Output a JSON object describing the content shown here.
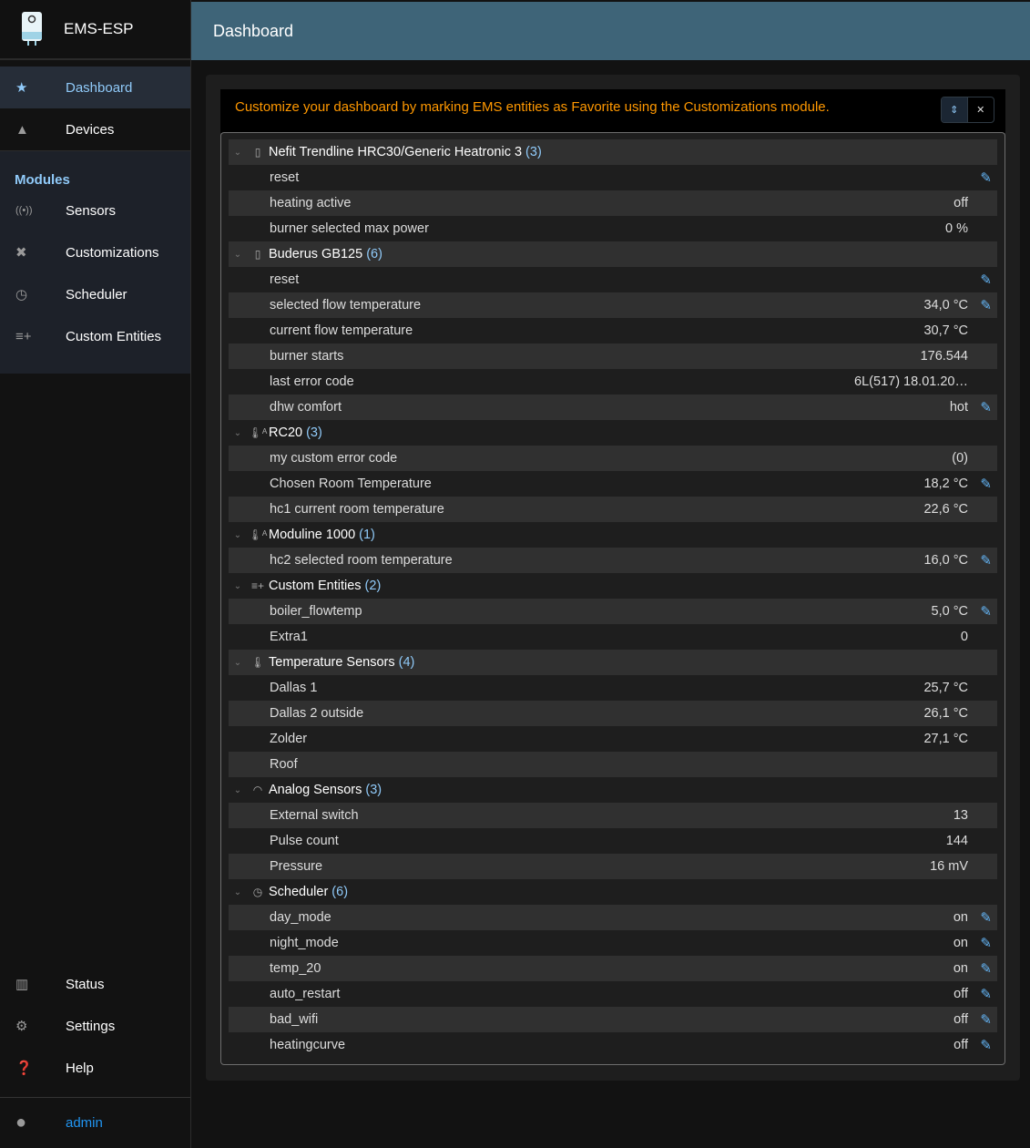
{
  "app": {
    "title": "EMS-ESP",
    "page_title": "Dashboard"
  },
  "sidebar": {
    "top": [
      {
        "label": "Dashboard",
        "icon": "star-icon",
        "selected": true
      },
      {
        "label": "Devices",
        "icon": "category-icon"
      }
    ],
    "modules_label": "Modules",
    "modules": [
      {
        "label": "Sensors",
        "icon": "sensors-icon"
      },
      {
        "label": "Customizations",
        "icon": "tools-icon"
      },
      {
        "label": "Scheduler",
        "icon": "clock-plus-icon"
      },
      {
        "label": "Custom Entities",
        "icon": "playlist-add-icon"
      }
    ],
    "bottom": [
      {
        "label": "Status",
        "icon": "chart-icon"
      },
      {
        "label": "Settings",
        "icon": "gear-icon"
      },
      {
        "label": "Help",
        "icon": "help-icon"
      }
    ],
    "user": {
      "label": "admin",
      "icon": "account-icon"
    }
  },
  "message": "Customize your dashboard by marking EMS entities as Favorite using the Customizations module.",
  "colors": {
    "accent": "#90caf9",
    "warning": "#ff9800",
    "header": "#3e6478"
  },
  "groups": [
    {
      "name": "Nefit Trendline HRC30/Generic Heatronic 3",
      "count": "(3)",
      "icon": "boiler-icon",
      "items": [
        {
          "name": "reset",
          "value": "",
          "edit": true
        },
        {
          "name": "heating active",
          "value": "off"
        },
        {
          "name": "burner selected max power",
          "value": "0 %"
        }
      ]
    },
    {
      "name": "Buderus GB125",
      "count": "(6)",
      "icon": "boiler-icon",
      "items": [
        {
          "name": "reset",
          "value": "",
          "edit": true
        },
        {
          "name": "selected flow temperature",
          "value": "34,0 °C",
          "edit": true
        },
        {
          "name": "current flow temperature",
          "value": "30,7 °C"
        },
        {
          "name": "burner starts",
          "value": "176.544"
        },
        {
          "name": "last error code",
          "value": "6L(517) 18.01.20…"
        },
        {
          "name": "dhw comfort",
          "value": "hot",
          "edit": true
        }
      ]
    },
    {
      "name": "RC20",
      "count": "(3)",
      "icon": "thermostat-icon",
      "items": [
        {
          "name": "my custom error code",
          "value": "(0)"
        },
        {
          "name": "Chosen Room Temperature",
          "value": "18,2 °C",
          "edit": true
        },
        {
          "name": "hc1 current room temperature",
          "value": "22,6 °C"
        }
      ]
    },
    {
      "name": "Moduline 1000",
      "count": "(1)",
      "icon": "thermostat-icon",
      "items": [
        {
          "name": "hc2 selected room temperature",
          "value": "16,0 °C",
          "edit": true
        }
      ]
    },
    {
      "name": "Custom Entities",
      "count": "(2)",
      "icon": "playlist-add-icon",
      "items": [
        {
          "name": "boiler_flowtemp",
          "value": "5,0 °C",
          "edit": true
        },
        {
          "name": "Extra1",
          "value": "0"
        }
      ]
    },
    {
      "name": "Temperature Sensors",
      "count": "(4)",
      "icon": "thermometer-icon",
      "items": [
        {
          "name": "Dallas 1",
          "value": "25,7 °C"
        },
        {
          "name": "Dallas 2 outside",
          "value": "26,1 °C"
        },
        {
          "name": "Zolder",
          "value": "27,1 °C"
        },
        {
          "name": "Roof",
          "value": ""
        }
      ]
    },
    {
      "name": "Analog Sensors",
      "count": "(3)",
      "icon": "gauge-icon",
      "items": [
        {
          "name": "External switch",
          "value": "13"
        },
        {
          "name": "Pulse count",
          "value": "144"
        },
        {
          "name": "Pressure",
          "value": "16 mV"
        }
      ]
    },
    {
      "name": "Scheduler",
      "count": "(6)",
      "icon": "clock-plus-icon",
      "items": [
        {
          "name": "day_mode",
          "value": "on",
          "edit": true
        },
        {
          "name": "night_mode",
          "value": "on",
          "edit": true
        },
        {
          "name": "temp_20",
          "value": "on",
          "edit": true
        },
        {
          "name": "auto_restart",
          "value": "off",
          "edit": true
        },
        {
          "name": "bad_wifi",
          "value": "off",
          "edit": true
        },
        {
          "name": "heatingcurve",
          "value": "off",
          "edit": true
        }
      ]
    }
  ]
}
